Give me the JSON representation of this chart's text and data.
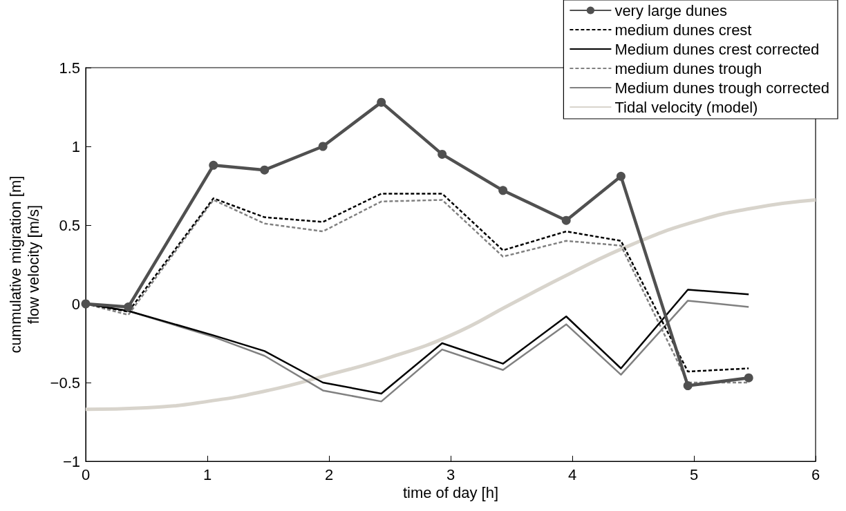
{
  "chart_data": {
    "type": "line",
    "xlabel": "time of day [h]",
    "ylabel": "cummulative migration [m]\nflow velocity [m/s]",
    "xlim": [
      0,
      6
    ],
    "xticks": [
      0,
      1,
      2,
      3,
      4,
      5,
      6
    ],
    "ylim": [
      -1,
      1.5
    ],
    "yticks": [
      -1,
      -0.5,
      0,
      0.5,
      1,
      1.5
    ],
    "grid": false,
    "legend": "top right",
    "x": [
      0,
      0.35,
      1.05,
      1.47,
      1.95,
      2.43,
      2.93,
      3.43,
      3.95,
      4.4,
      4.95,
      5.45
    ],
    "series": [
      {
        "name": "very large dunes",
        "color": "#505050",
        "marker": "circle",
        "line_style": "solid",
        "values": [
          0,
          -0.02,
          0.88,
          0.85,
          1.0,
          1.28,
          0.95,
          0.72,
          0.53,
          0.81,
          -0.52,
          -0.47
        ]
      },
      {
        "name": "medium dunes crest",
        "color": "#000000",
        "marker": "none",
        "line_style": "dashed",
        "values": [
          0,
          -0.05,
          0.67,
          0.55,
          0.52,
          0.7,
          0.7,
          0.34,
          0.46,
          0.4,
          -0.43,
          -0.41
        ]
      },
      {
        "name": "Medium dunes crest corrected",
        "color": "#000000",
        "marker": "none",
        "line_style": "solid",
        "values": [
          0,
          -0.045,
          -0.2,
          -0.3,
          -0.5,
          -0.57,
          -0.25,
          -0.38,
          -0.08,
          -0.41,
          0.09,
          0.06
        ]
      },
      {
        "name": "medium dunes trough",
        "color": "#808080",
        "marker": "none",
        "line_style": "dashed",
        "values": [
          0,
          -0.07,
          0.66,
          0.51,
          0.46,
          0.65,
          0.66,
          0.3,
          0.4,
          0.37,
          -0.5,
          -0.5
        ]
      },
      {
        "name": "Medium dunes trough corrected",
        "color": "#808080",
        "marker": "none",
        "line_style": "solid",
        "values": [
          0,
          -0.045,
          -0.21,
          -0.33,
          -0.55,
          -0.62,
          -0.29,
          -0.42,
          -0.13,
          -0.45,
          0.02,
          -0.02
        ]
      },
      {
        "name": "Tidal velocity (model)",
        "color": "#d8d4cc",
        "marker": "none",
        "line_style": "solid",
        "x": [
          0,
          0.5,
          1,
          1.5,
          2,
          2.5,
          3,
          3.5,
          4,
          4.5,
          5,
          5.5,
          6
        ],
        "values": [
          -0.67,
          -0.66,
          -0.62,
          -0.55,
          -0.45,
          -0.34,
          -0.2,
          0,
          0.2,
          0.38,
          0.52,
          0.61,
          0.66
        ]
      }
    ]
  }
}
